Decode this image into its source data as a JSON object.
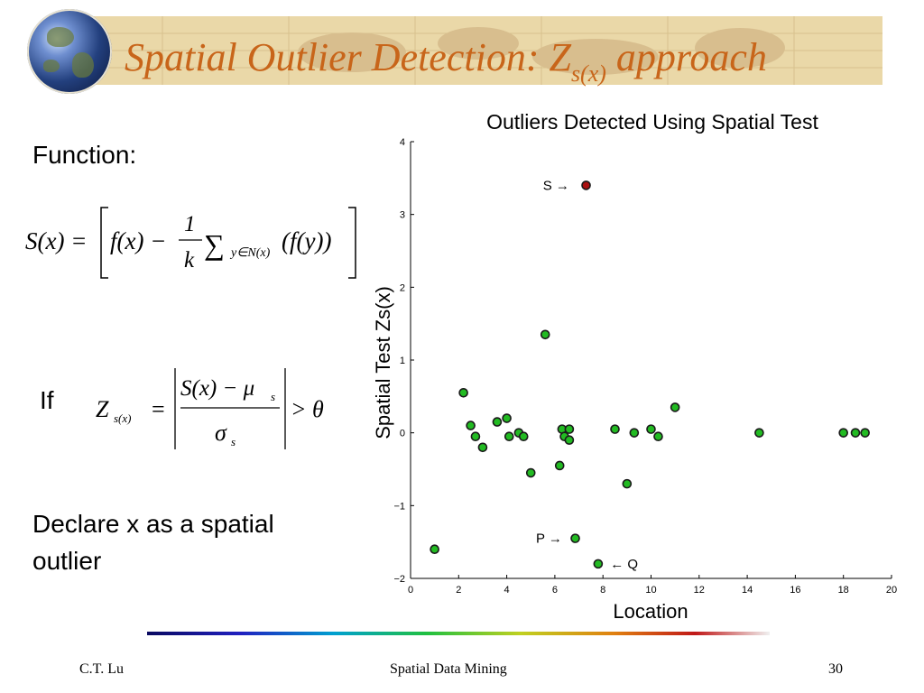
{
  "slide": {
    "title_main": "Spatial Outlier Detection: Z",
    "title_sub": "s(x)",
    "title_tail": " approach",
    "function_label": "Function:",
    "if_label": "If",
    "declare_line1": "Declare x as a spatial",
    "declare_line2": "outlier",
    "footer_author": "C.T. Lu",
    "footer_course": "Spatial Data Mining",
    "footer_page": "30",
    "accent_color": "#c8651a"
  },
  "formula1": {
    "lhs": "S(x) =",
    "fx": "f(x) −",
    "one": "1",
    "k": "k",
    "sum": "∑",
    "sub": "y∈N(x)",
    "tail": "(f(y))"
  },
  "formula2": {
    "Z": "Z",
    "Zsub": "s(x)",
    "eq": "=",
    "num": "S(x) − μ",
    "num_sub": "s",
    "den": "σ",
    "den_sub": "s",
    "gt": "> θ"
  },
  "chart_data": {
    "type": "scatter",
    "title": "Outliers Detected Using Spatial Test",
    "xlabel": "Location",
    "ylabel": "Spatial Test Zs(x)",
    "xlim": [
      0,
      20
    ],
    "ylim": [
      -2,
      4
    ],
    "xticks": [
      0,
      2,
      4,
      6,
      8,
      10,
      12,
      14,
      16,
      18,
      20
    ],
    "yticks": [
      -2,
      -1,
      0,
      1,
      2,
      3,
      4
    ],
    "ytick_labels": [
      "−2",
      "−1",
      "0",
      "1",
      "2",
      "3",
      "4"
    ],
    "grid": false,
    "point_color": "#22bb22",
    "outlier_color": "#aa1111",
    "points": [
      {
        "x": 1.0,
        "y": -1.6
      },
      {
        "x": 2.2,
        "y": 0.55
      },
      {
        "x": 2.5,
        "y": 0.1
      },
      {
        "x": 2.7,
        "y": -0.05
      },
      {
        "x": 3.0,
        "y": -0.2
      },
      {
        "x": 3.6,
        "y": 0.15
      },
      {
        "x": 4.0,
        "y": 0.2
      },
      {
        "x": 4.1,
        "y": -0.05
      },
      {
        "x": 4.5,
        "y": 0.0
      },
      {
        "x": 4.7,
        "y": -0.05
      },
      {
        "x": 5.0,
        "y": -0.55
      },
      {
        "x": 5.6,
        "y": 1.35
      },
      {
        "x": 6.2,
        "y": -0.45
      },
      {
        "x": 6.3,
        "y": 0.05
      },
      {
        "x": 6.4,
        "y": -0.05
      },
      {
        "x": 6.6,
        "y": 0.05
      },
      {
        "x": 6.6,
        "y": -0.1
      },
      {
        "x": 6.85,
        "y": -1.45
      },
      {
        "x": 7.3,
        "y": 3.4,
        "outlier": true
      },
      {
        "x": 7.8,
        "y": -1.8
      },
      {
        "x": 8.5,
        "y": 0.05
      },
      {
        "x": 9.0,
        "y": -0.7
      },
      {
        "x": 9.3,
        "y": 0.0
      },
      {
        "x": 10.0,
        "y": 0.05
      },
      {
        "x": 10.3,
        "y": -0.05
      },
      {
        "x": 11.0,
        "y": 0.35
      },
      {
        "x": 14.5,
        "y": 0.0
      },
      {
        "x": 18.0,
        "y": 0.0
      },
      {
        "x": 18.5,
        "y": 0.0
      },
      {
        "x": 18.9,
        "y": 0.0
      }
    ],
    "annotations": [
      {
        "text": "S →",
        "x": 6.6,
        "y": 3.4,
        "anchor": "end"
      },
      {
        "text": "P →",
        "x": 6.3,
        "y": -1.45,
        "anchor": "end"
      },
      {
        "text": "← Q",
        "x": 8.3,
        "y": -1.8,
        "anchor": "start"
      }
    ]
  }
}
